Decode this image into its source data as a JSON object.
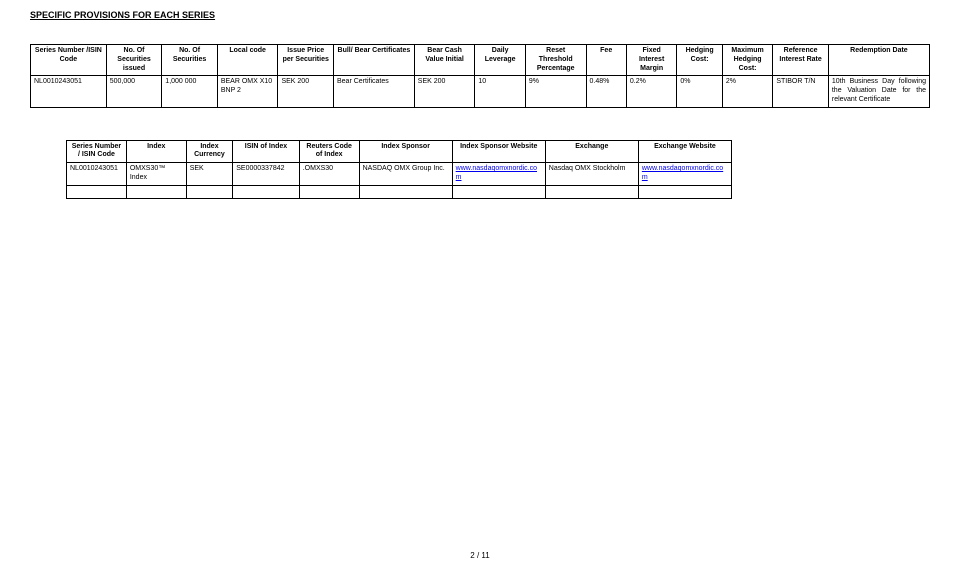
{
  "title": "SPECIFIC PROVISIONS FOR EACH SERIES",
  "table1": {
    "headers": [
      "Series Number /ISIN Code",
      "No. Of Securities issued",
      "No. Of Securities",
      "Local code",
      "Issue Price per Securities",
      "Bull/ Bear Certificates",
      "Bear Cash Value Initial",
      "Daily Leverage",
      "Reset Threshold Percentage",
      "Fee",
      "Fixed Interest Margin",
      "Hedging Cost:",
      "Maximum Hedging Cost:",
      "Reference Interest Rate",
      "Redemption Date"
    ],
    "rows": [
      {
        "isin": "NL0010243051",
        "issued": "500,000",
        "securities": "1,000 000",
        "local_code": "BEAR OMX X10 BNP 2",
        "price": "SEK 200",
        "bull_bear": "Bear Certificates",
        "cash_initial": "SEK 200",
        "leverage": "10",
        "reset": "9%",
        "fee": "0.48%",
        "fixed_margin": "0.2%",
        "hedging": "0%",
        "max_hedging": "2%",
        "ref_rate": "STIBOR T/N",
        "redemption": "10th Business Day following the Valuation Date for the relevant Certificate"
      }
    ]
  },
  "table2": {
    "headers": [
      "Series Number / ISIN Code",
      "Index",
      "Index Currency",
      "ISIN of Index",
      "Reuters Code of Index",
      "Index Sponsor",
      "Index Sponsor Website",
      "Exchange",
      "Exchange Website"
    ],
    "rows": [
      {
        "isin": "NL0010243051",
        "index": "OMXS30™ Index",
        "currency": "SEK",
        "isin_index": "SE0000337842",
        "reuters": ".OMXS30",
        "sponsor": "NASDAQ OMX Group Inc.",
        "sponsor_site": "www.nasdaqomxnordic.com",
        "exchange": "Nasdaq OMX Stockholm",
        "exchange_site": "www.nasdaqomxnordic.com"
      }
    ]
  },
  "footer": "2 / 11"
}
